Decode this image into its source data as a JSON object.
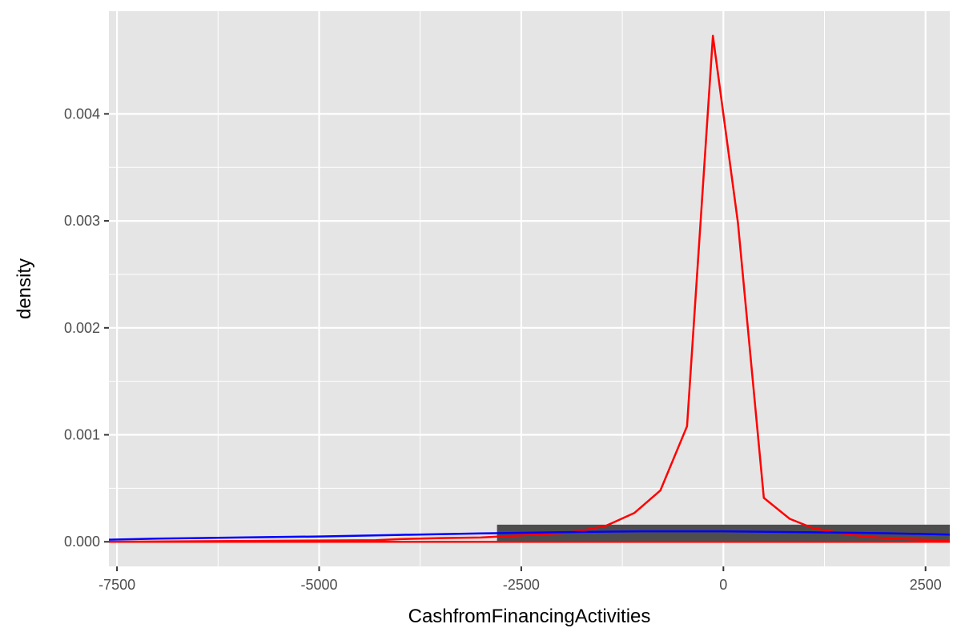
{
  "chart_data": {
    "type": "line",
    "title": "",
    "xlabel": "CashfromFinancingActivities",
    "ylabel": "density",
    "xlim": [
      -7600,
      2800
    ],
    "ylim": [
      -0.00023,
      0.00496
    ],
    "x_ticks": [
      -7500,
      -5000,
      -2500,
      0,
      2500
    ],
    "x_tick_labels": [
      "-7500",
      "-5000",
      "-2500",
      "0",
      "2500"
    ],
    "y_ticks": [
      0.0,
      0.001,
      0.002,
      0.003,
      0.004
    ],
    "y_tick_labels": [
      "0.000",
      "0.001",
      "0.002",
      "0.003",
      "0.004"
    ],
    "grid": true,
    "panel_background": "#e5e5e5",
    "grid_color": "#ffffff",
    "series": [
      {
        "color": "#ff0000",
        "x": [
          -7600,
          -4300,
          -4000,
          -3500,
          -3000,
          -2500,
          -2000,
          -1750,
          -1450,
          -1100,
          -780,
          -450,
          -130,
          180,
          500,
          820,
          1100,
          1450,
          1750,
          2100,
          2450,
          2800
        ],
        "y": [
          0.0,
          1.5e-05,
          2.5e-05,
          3.5e-05,
          4e-05,
          6e-05,
          8e-05,
          0.000105,
          0.00015,
          0.00027,
          0.00048,
          0.00108,
          0.00473,
          0.00298,
          0.00041,
          0.000215,
          0.00013,
          8e-05,
          5e-05,
          3e-05,
          2e-05,
          1e-05
        ]
      },
      {
        "color": "#ff0000",
        "x": [
          -7600,
          2800
        ],
        "y": [
          0.0,
          0.0
        ]
      },
      {
        "color": "#0000ff",
        "x": [
          -7600,
          -7000,
          -6000,
          -5000,
          -4000,
          -3000,
          -2000,
          -1000,
          0,
          1000,
          2000,
          2800
        ],
        "y": [
          2e-05,
          3e-05,
          4e-05,
          5e-05,
          6.5e-05,
          7.8e-05,
          9e-05,
          9.8e-05,
          9.8e-05,
          9e-05,
          8e-05,
          6.8e-05
        ]
      }
    ],
    "boxplot": {
      "color": "#4d4d4d",
      "x_range": [
        -2800,
        2800
      ],
      "y_range": [
        0.0,
        0.00016
      ]
    }
  }
}
